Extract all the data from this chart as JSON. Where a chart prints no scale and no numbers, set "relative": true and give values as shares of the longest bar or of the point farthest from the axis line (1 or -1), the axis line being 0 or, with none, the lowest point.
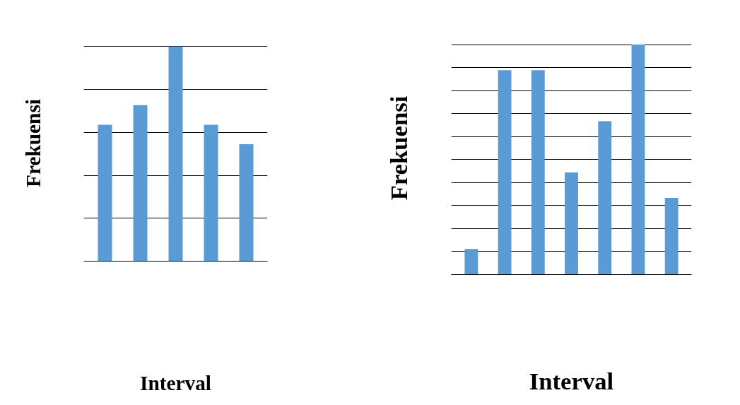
{
  "chart_data": [
    {
      "type": "bar",
      "xlabel": "Interval",
      "ylabel": "Frekuensi",
      "relative": true,
      "grid": "y",
      "categories": [
        null,
        null,
        null,
        null,
        null
      ],
      "series": [
        {
          "color": "#5b9bd5",
          "values": [
            0.636,
            0.727,
            1,
            0.636,
            0.545
          ]
        }
      ]
    },
    {
      "type": "bar",
      "xlabel": "Interval",
      "ylabel": "Frekuensi",
      "relative": true,
      "grid": "y",
      "categories": [
        null,
        null,
        null,
        null,
        null,
        null,
        null
      ],
      "series": [
        {
          "color": "#5b9bd5",
          "values": [
            0.111,
            0.889,
            0.889,
            0.444,
            0.667,
            1,
            0.333
          ]
        }
      ]
    }
  ]
}
